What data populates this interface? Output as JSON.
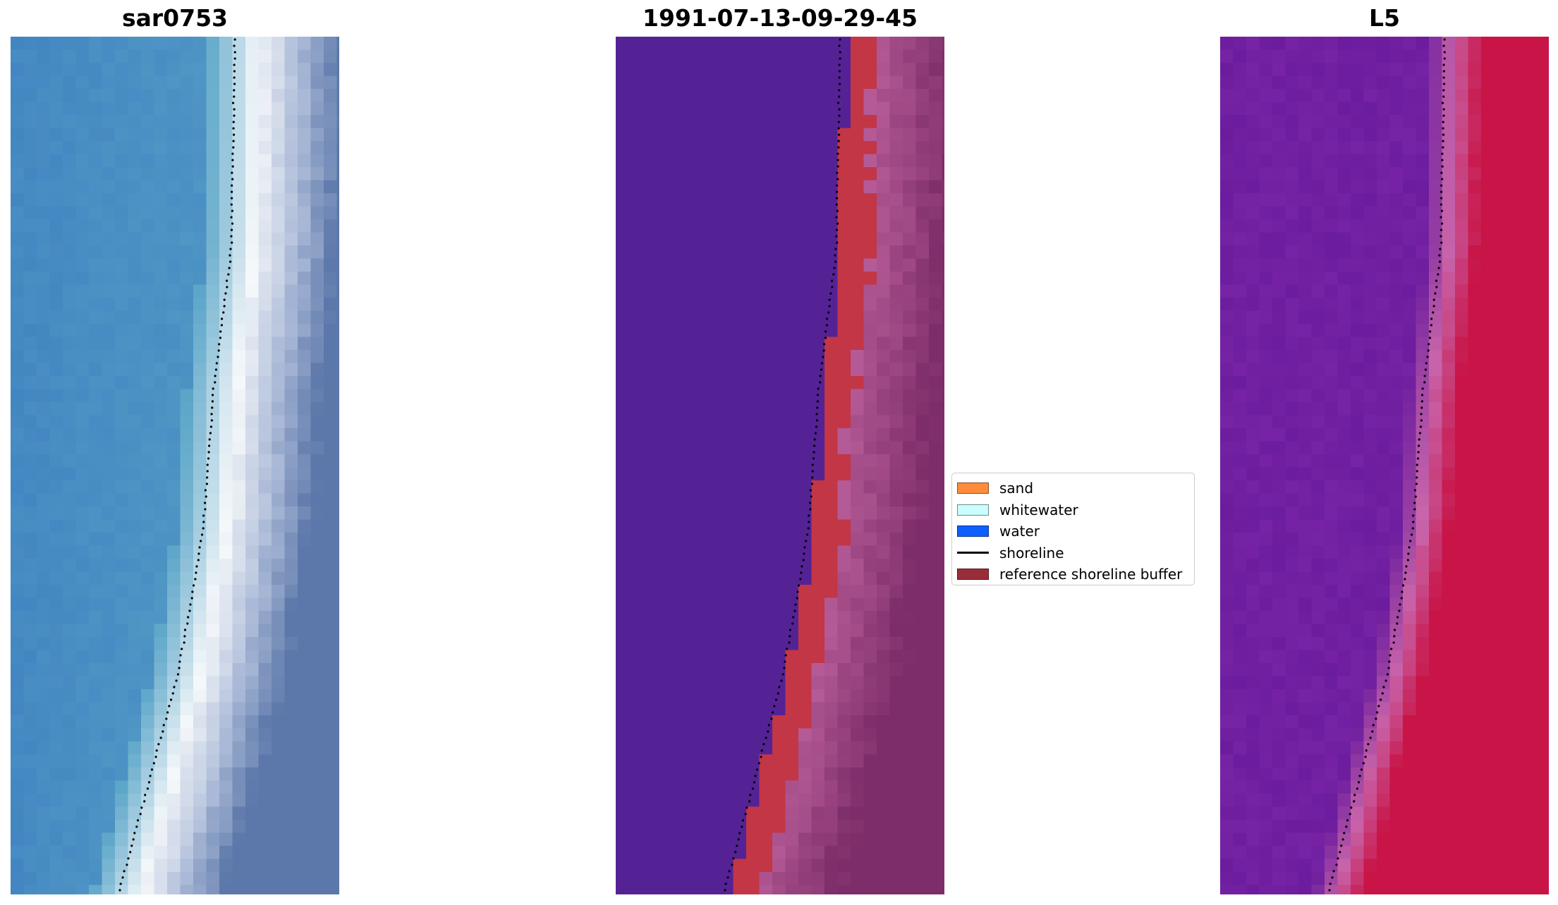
{
  "panels": [
    {
      "title": "sar0753"
    },
    {
      "title": "1991-07-13-09-29-45"
    },
    {
      "title": "L5"
    }
  ],
  "legend": [
    {
      "label": "sand",
      "color": "#ff8c3a",
      "kind": "patch"
    },
    {
      "label": "whitewater",
      "color": "#c9fdff",
      "kind": "patch"
    },
    {
      "label": "water",
      "color": "#0b60ff",
      "kind": "patch"
    },
    {
      "label": "shoreline",
      "color": "#000000",
      "kind": "line"
    },
    {
      "label": "reference shoreline buffer",
      "color": "#9a2d3a",
      "kind": "patch"
    }
  ]
}
